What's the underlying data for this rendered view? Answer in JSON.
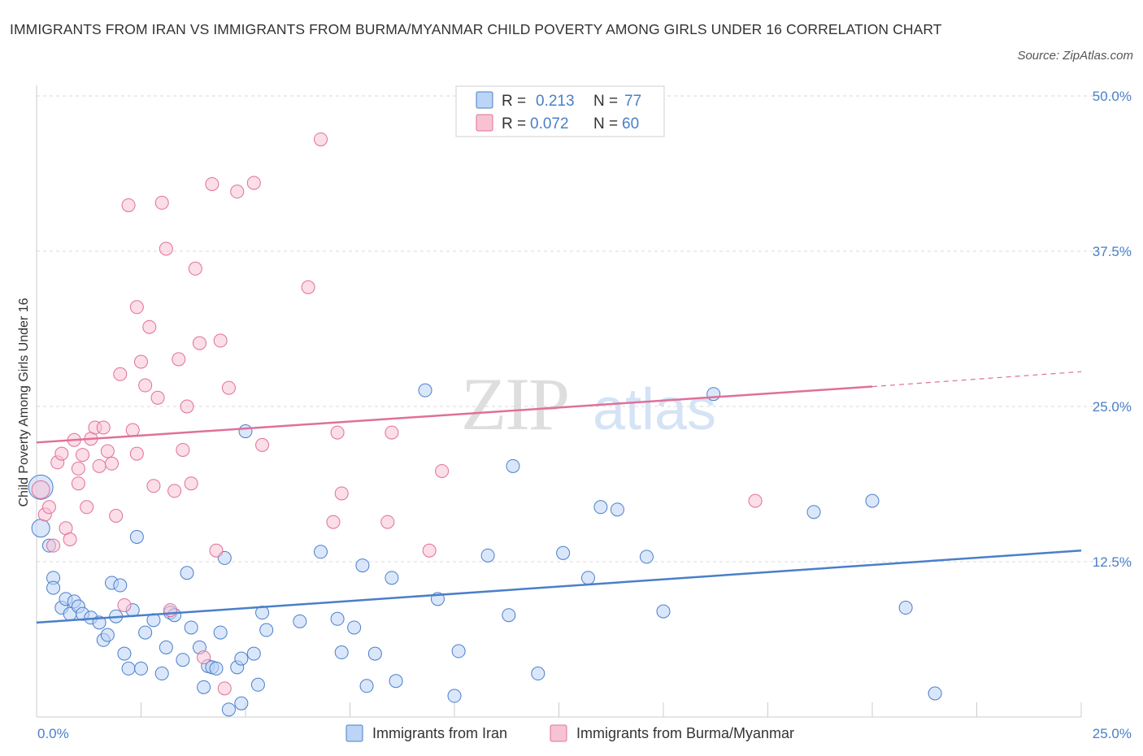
{
  "title": "IMMIGRANTS FROM IRAN VS IMMIGRANTS FROM BURMA/MYANMAR CHILD POVERTY AMONG GIRLS UNDER 16 CORRELATION CHART",
  "source": "Source: ZipAtlas.com",
  "watermark": {
    "zip": "ZIP",
    "atlas": "atlas"
  },
  "colors": {
    "iran": "#4a7fc9",
    "iran_fill": "#bcd4f5",
    "burma": "#e0709a",
    "burma_fill": "#f7c3d3",
    "grid": "#d9d9d9",
    "axis_text": "#4a7fc9"
  },
  "legend": {
    "r_label": "R =",
    "n_label": "N =",
    "iran_r": "0.213",
    "iran_n": "77",
    "burma_r": "0.072",
    "burma_n": "60"
  },
  "chart_data": {
    "type": "scatter",
    "title": "IMMIGRANTS FROM IRAN VS IMMIGRANTS FROM BURMA/MYANMAR CHILD POVERTY AMONG GIRLS UNDER 16 CORRELATION CHART",
    "xlabel": "",
    "ylabel": "Child Poverty Among Girls Under 16",
    "xlim": [
      0,
      25
    ],
    "ylim": [
      0,
      50
    ],
    "x_tick_labels": [
      "0.0%",
      "25.0%"
    ],
    "y_tick_values": [
      12.5,
      25,
      37.5,
      50
    ],
    "y_tick_labels": [
      "12.5%",
      "25.0%",
      "37.5%",
      "50.0%"
    ],
    "grid": true,
    "legend_position": "top-center",
    "series": [
      {
        "name": "Immigrants from Iran",
        "r": 0.213,
        "n": 77,
        "trend": {
          "x0": 0,
          "y0": 7.6,
          "x1": 25,
          "y1": 13.4
        },
        "points": [
          [
            0.1,
            18.5,
            3
          ],
          [
            0.1,
            15.2,
            2
          ],
          [
            0.3,
            13.8,
            1
          ],
          [
            0.4,
            11.2,
            1
          ],
          [
            0.4,
            10.4,
            1
          ],
          [
            0.6,
            8.8,
            1
          ],
          [
            0.7,
            9.5,
            1
          ],
          [
            0.8,
            8.3,
            1
          ],
          [
            0.9,
            9.3,
            1
          ],
          [
            1.0,
            8.9,
            1
          ],
          [
            1.1,
            8.3,
            1
          ],
          [
            1.3,
            8.0,
            1
          ],
          [
            1.5,
            7.6,
            1
          ],
          [
            1.6,
            6.2,
            1
          ],
          [
            1.7,
            6.6,
            1
          ],
          [
            1.8,
            10.8,
            1
          ],
          [
            1.9,
            8.1,
            1
          ],
          [
            2.0,
            10.6,
            1
          ],
          [
            2.1,
            5.1,
            1
          ],
          [
            2.2,
            3.9,
            1
          ],
          [
            2.3,
            8.6,
            1
          ],
          [
            2.4,
            14.5,
            1
          ],
          [
            2.5,
            3.9,
            1
          ],
          [
            2.6,
            6.8,
            1
          ],
          [
            2.8,
            7.8,
            1
          ],
          [
            3.0,
            3.5,
            1
          ],
          [
            3.1,
            5.6,
            1
          ],
          [
            3.2,
            8.4,
            1
          ],
          [
            3.3,
            8.2,
            1
          ],
          [
            3.5,
            4.6,
            1
          ],
          [
            3.6,
            11.6,
            1
          ],
          [
            3.7,
            7.2,
            1
          ],
          [
            3.9,
            5.6,
            1
          ],
          [
            4.0,
            2.4,
            1
          ],
          [
            4.1,
            4.1,
            1
          ],
          [
            4.2,
            4.0,
            1
          ],
          [
            4.3,
            3.9,
            1
          ],
          [
            4.4,
            6.8,
            1
          ],
          [
            4.5,
            12.8,
            1
          ],
          [
            4.6,
            0.6,
            1
          ],
          [
            4.8,
            4.0,
            1
          ],
          [
            4.9,
            4.7,
            1
          ],
          [
            4.9,
            1.1,
            1
          ],
          [
            5.0,
            23.0,
            1
          ],
          [
            5.2,
            5.1,
            1
          ],
          [
            5.3,
            2.6,
            1
          ],
          [
            5.4,
            8.4,
            1
          ],
          [
            5.5,
            7.0,
            1
          ],
          [
            6.3,
            7.7,
            1
          ],
          [
            6.8,
            13.3,
            1
          ],
          [
            7.2,
            7.9,
            1
          ],
          [
            7.3,
            5.2,
            1
          ],
          [
            7.6,
            7.2,
            1
          ],
          [
            7.8,
            12.2,
            1
          ],
          [
            7.9,
            2.5,
            1
          ],
          [
            8.1,
            5.1,
            1
          ],
          [
            8.5,
            11.2,
            1
          ],
          [
            8.6,
            2.9,
            1
          ],
          [
            9.3,
            26.3,
            1
          ],
          [
            9.6,
            9.5,
            1
          ],
          [
            10.0,
            1.7,
            1
          ],
          [
            10.1,
            5.3,
            1
          ],
          [
            10.8,
            13.0,
            1
          ],
          [
            11.3,
            8.2,
            1
          ],
          [
            11.4,
            20.2,
            1
          ],
          [
            12.0,
            3.5,
            1
          ],
          [
            12.6,
            13.2,
            1
          ],
          [
            13.2,
            11.2,
            1
          ],
          [
            13.5,
            16.9,
            1
          ],
          [
            13.9,
            16.7,
            1
          ],
          [
            14.6,
            12.9,
            1
          ],
          [
            15.0,
            8.5,
            1
          ],
          [
            16.2,
            26.0,
            1
          ],
          [
            18.6,
            16.5,
            1
          ],
          [
            20.0,
            17.4,
            1
          ],
          [
            20.8,
            8.8,
            1
          ],
          [
            21.5,
            1.9,
            1
          ]
        ]
      },
      {
        "name": "Immigrants from Burma/Myanmar",
        "r": 0.072,
        "n": 60,
        "trend": {
          "x0": 0,
          "y0": 22.1,
          "x1": 20,
          "y1": 26.6,
          "dash_to_x": 25,
          "dash_to_y": 27.8
        },
        "points": [
          [
            0.1,
            18.3,
            2
          ],
          [
            0.2,
            16.3,
            1
          ],
          [
            0.3,
            16.9,
            1
          ],
          [
            0.4,
            13.8,
            1
          ],
          [
            0.5,
            20.5,
            1
          ],
          [
            0.6,
            21.2,
            1
          ],
          [
            0.7,
            15.2,
            1
          ],
          [
            0.8,
            14.3,
            1
          ],
          [
            0.9,
            22.3,
            1
          ],
          [
            1.0,
            18.8,
            1
          ],
          [
            1.0,
            20.0,
            1
          ],
          [
            1.1,
            21.1,
            1
          ],
          [
            1.2,
            16.9,
            1
          ],
          [
            1.3,
            22.4,
            1
          ],
          [
            1.4,
            23.3,
            1
          ],
          [
            1.5,
            20.2,
            1
          ],
          [
            1.6,
            23.3,
            1
          ],
          [
            1.7,
            21.4,
            1
          ],
          [
            1.8,
            20.4,
            1
          ],
          [
            1.9,
            16.2,
            1
          ],
          [
            2.0,
            27.6,
            1
          ],
          [
            2.1,
            9.0,
            1
          ],
          [
            2.2,
            41.2,
            1
          ],
          [
            2.3,
            23.1,
            1
          ],
          [
            2.4,
            33.0,
            1
          ],
          [
            2.4,
            21.2,
            1
          ],
          [
            2.5,
            28.6,
            1
          ],
          [
            2.6,
            26.7,
            1
          ],
          [
            2.7,
            31.4,
            1
          ],
          [
            2.8,
            18.6,
            1
          ],
          [
            2.9,
            25.7,
            1
          ],
          [
            3.0,
            41.4,
            1
          ],
          [
            3.1,
            37.7,
            1
          ],
          [
            3.2,
            8.6,
            1
          ],
          [
            3.3,
            18.2,
            1
          ],
          [
            3.4,
            28.8,
            1
          ],
          [
            3.5,
            21.5,
            1
          ],
          [
            3.6,
            25.0,
            1
          ],
          [
            3.7,
            18.8,
            1
          ],
          [
            3.8,
            36.1,
            1
          ],
          [
            3.9,
            30.1,
            1
          ],
          [
            4.0,
            4.8,
            1
          ],
          [
            4.2,
            42.9,
            1
          ],
          [
            4.3,
            13.4,
            1
          ],
          [
            4.4,
            30.3,
            1
          ],
          [
            4.5,
            2.3,
            1
          ],
          [
            4.6,
            26.5,
            1
          ],
          [
            4.8,
            42.3,
            1
          ],
          [
            5.2,
            43.0,
            1
          ],
          [
            5.4,
            21.9,
            1
          ],
          [
            6.5,
            34.6,
            1
          ],
          [
            6.8,
            46.5,
            1
          ],
          [
            7.1,
            15.7,
            1
          ],
          [
            7.2,
            22.9,
            1
          ],
          [
            7.3,
            18.0,
            1
          ],
          [
            8.4,
            15.7,
            1
          ],
          [
            8.5,
            22.9,
            1
          ],
          [
            9.4,
            13.4,
            1
          ],
          [
            9.7,
            19.8,
            1
          ],
          [
            17.2,
            17.4,
            1
          ]
        ]
      }
    ]
  }
}
